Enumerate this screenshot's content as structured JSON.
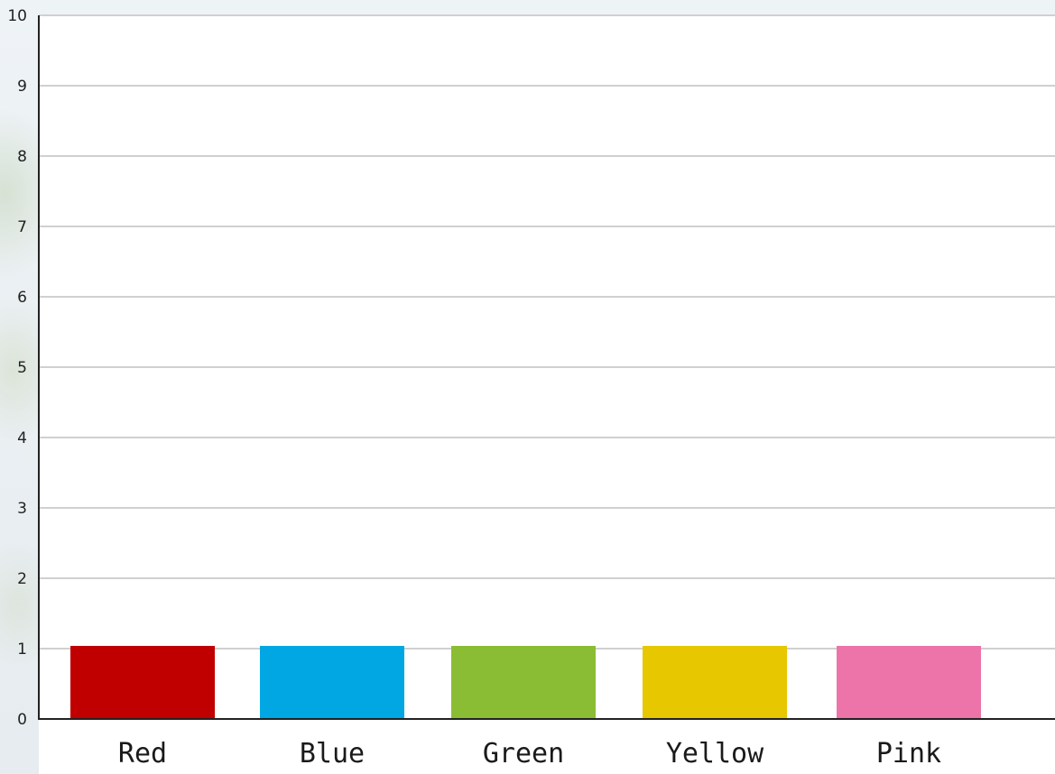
{
  "chart_data": {
    "type": "bar",
    "title": "",
    "xlabel": "",
    "ylabel": "",
    "categories": [
      "Red",
      "Blue",
      "Green",
      "Yellow",
      "Pink"
    ],
    "values": [
      1,
      1,
      1,
      1,
      1
    ],
    "colors": [
      "#c00000",
      "#00a7e3",
      "#8abd34",
      "#e6c700",
      "#ec74a9"
    ],
    "ylim": [
      0,
      10
    ],
    "yticks": [
      "0",
      "1",
      "2",
      "3",
      "4",
      "5",
      "6",
      "7",
      "8",
      "9",
      "10"
    ],
    "grid": true,
    "legend": "none"
  }
}
